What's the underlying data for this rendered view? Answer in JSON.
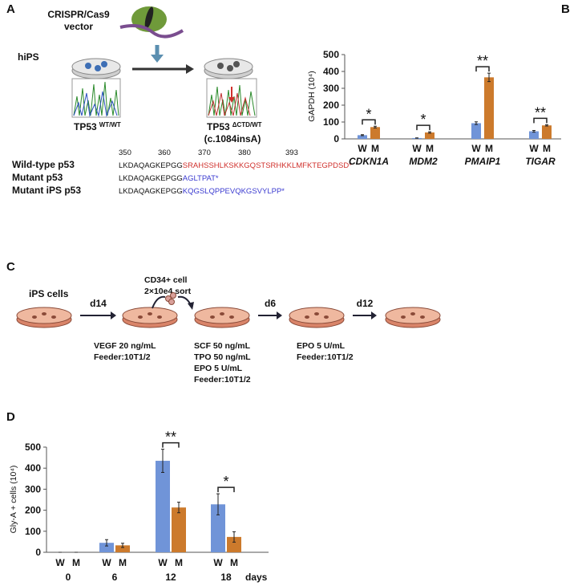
{
  "panel_a": {
    "label": "A",
    "vector_lines": [
      "CRISPR/Cas9",
      "vector"
    ],
    "cell_line": "hiPS",
    "wt_genotype": {
      "gene": "TP53",
      "sup": "WT/WT"
    },
    "mut_genotype": {
      "gene": "TP53",
      "sup": "ΔCTD/WT",
      "mutation": "(c.1084insA)"
    },
    "positions": [
      350,
      360,
      370,
      380,
      393
    ],
    "sequences": [
      {
        "name": "Wild-type p53",
        "common": "LKDAQAGKEPGG",
        "variant": "SRAHSSHLKSKKGQSTSRHKKLMFKTEGPDSD*",
        "color": "#d0312d"
      },
      {
        "name": "Mutant p53",
        "common": "LKDAQAGKEPGG",
        "variant": "AGLTPAT*",
        "color": "#3b3bd0"
      },
      {
        "name": "Mutant iPS p53",
        "common": "LKDAQAGKEPGG",
        "variant": "KQGSLQPPEVQKGSVYLPP*",
        "color": "#3b3bd0"
      }
    ]
  },
  "panel_c": {
    "label": "C",
    "start": "iPS cells",
    "steps": [
      "d14",
      "d6",
      "d12"
    ],
    "sort_lines": [
      "CD34+ cell",
      "2×10e4 sort"
    ],
    "conditions": [
      [
        "VEGF 20 ng/mL",
        "Feeder:10T1/2"
      ],
      [
        "SCF 50 ng/mL",
        "TPO 50 ng/mL",
        "EPO 5 U/mL",
        "Feeder:10T1/2"
      ],
      [
        "EPO 5 U/mL",
        "Feeder:10T1/2"
      ]
    ]
  },
  "chart_data": [
    {
      "type": "bar",
      "panel": "B",
      "ylabel": "GAPDH (10⁴)",
      "categories": [
        "CDKN1A",
        "MDM2",
        "PMAIP1",
        "TIGAR"
      ],
      "series": [
        {
          "name": "W",
          "color": "#7094d8",
          "values": [
            22,
            5,
            93,
            45
          ],
          "errors": [
            3,
            1,
            8,
            5
          ]
        },
        {
          "name": "M",
          "color": "#cc7a2c",
          "values": [
            70,
            38,
            365,
            80
          ],
          "errors": [
            5,
            4,
            25,
            4
          ]
        }
      ],
      "significance": [
        "*",
        "*",
        "**",
        "**"
      ],
      "ylim": [
        0,
        500
      ],
      "yticks": [
        0,
        100,
        200,
        300,
        400,
        500
      ]
    },
    {
      "type": "bar",
      "panel": "D",
      "ylabel": "Gly-A + cells (10⁴)",
      "categories": [
        "0",
        "6",
        "12",
        "18"
      ],
      "x_unit": "days",
      "series": [
        {
          "name": "W",
          "color": "#7094d8",
          "values": [
            0,
            45,
            435,
            228
          ],
          "errors": [
            0,
            15,
            55,
            50
          ]
        },
        {
          "name": "M",
          "color": "#cc7a2c",
          "values": [
            0,
            33,
            213,
            73
          ],
          "errors": [
            0,
            10,
            25,
            25
          ]
        }
      ],
      "significance": [
        null,
        null,
        "**",
        "*"
      ],
      "ylim": [
        0,
        500
      ],
      "yticks": [
        0,
        100,
        200,
        300,
        400,
        500
      ]
    }
  ]
}
